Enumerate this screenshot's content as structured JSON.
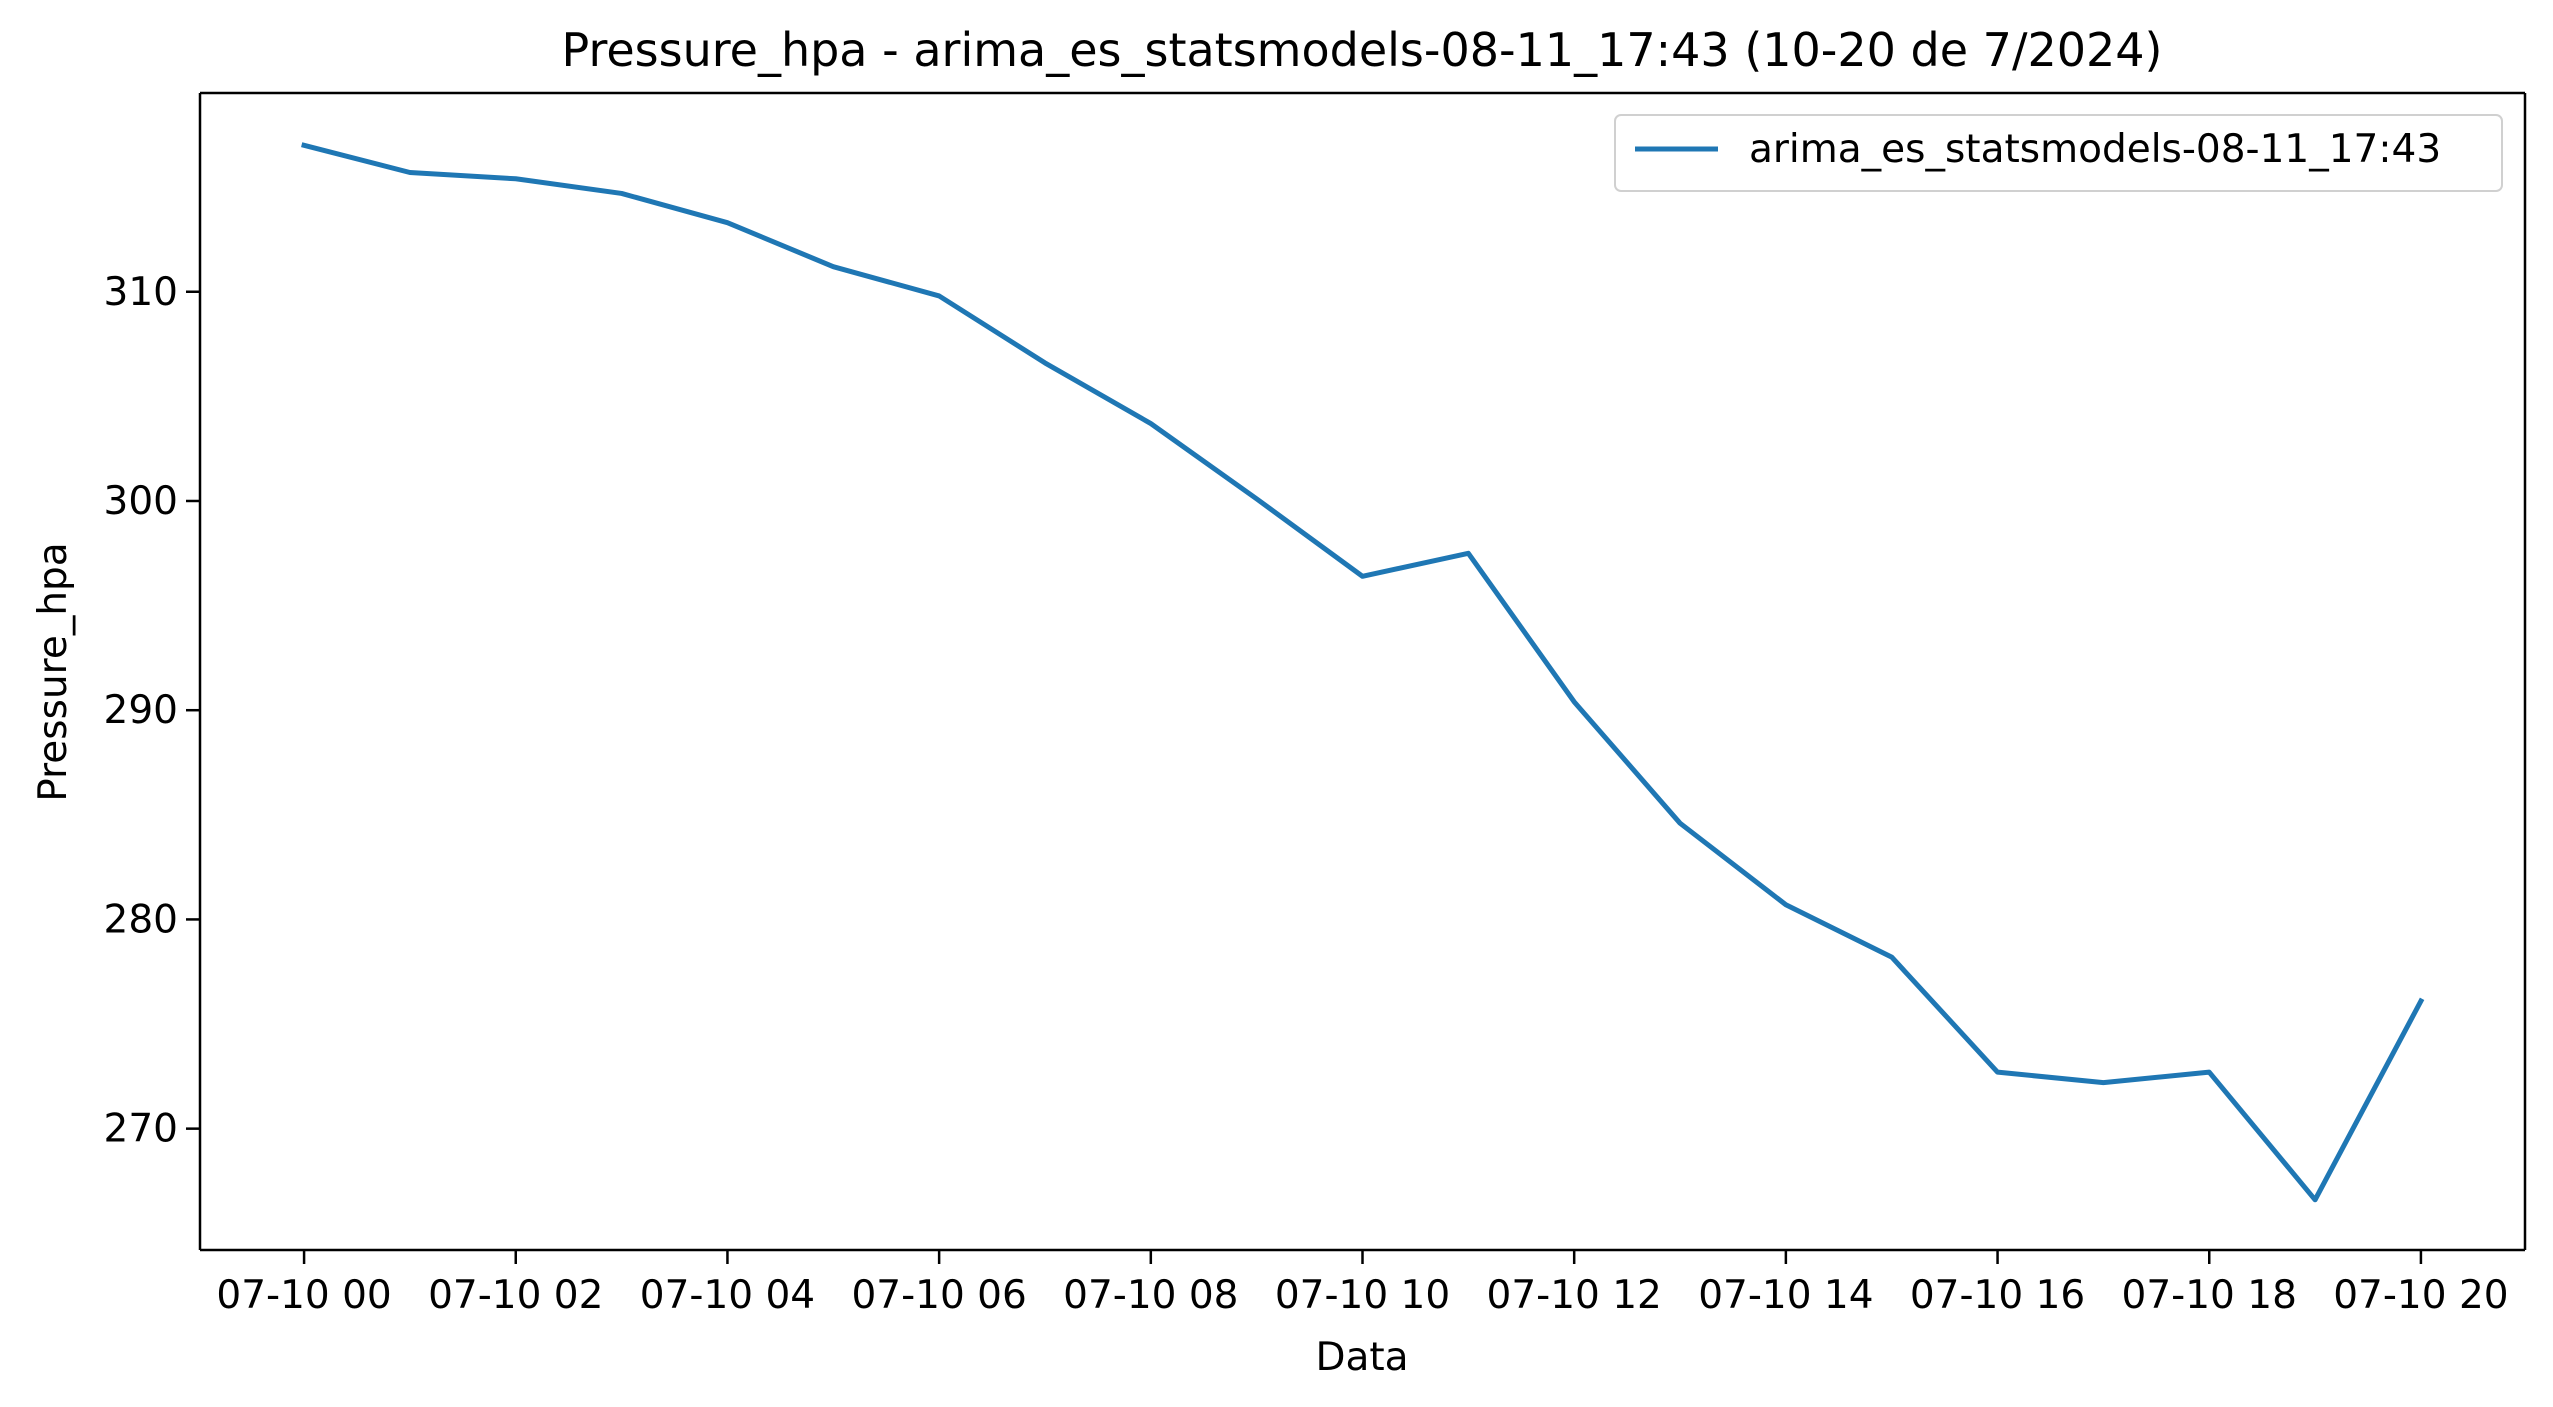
{
  "chart_data": {
    "type": "line",
    "title": "Pressure_hpa - arima_es_statsmodels-08-11_17:43 (10-20 de 7/2024)",
    "xlabel": "Data",
    "ylabel": "Pressure_hpa",
    "x": [
      "07-10 00",
      "07-10 01",
      "07-10 02",
      "07-10 03",
      "07-10 04",
      "07-10 05",
      "07-10 06",
      "07-10 07",
      "07-10 08",
      "07-10 09",
      "07-10 10",
      "07-10 11",
      "07-10 12",
      "07-10 13",
      "07-10 14",
      "07-10 15",
      "07-10 16",
      "07-10 17",
      "07-10 18",
      "07-10 19",
      "07-10 20"
    ],
    "xlim": [
      "07-09 23:01",
      "07-10 20:59"
    ],
    "x_ticks": [
      "07-10 00",
      "07-10 02",
      "07-10 04",
      "07-10 06",
      "07-10 08",
      "07-10 10",
      "07-10 12",
      "07-10 14",
      "07-10 16",
      "07-10 18",
      "07-10 20"
    ],
    "ylim": [
      264.2,
      319.5
    ],
    "y_ticks": [
      270,
      280,
      290,
      300,
      310
    ],
    "series": [
      {
        "name": "arima_es_statsmodels-08-11_17:43",
        "color": "#1f77b4",
        "values": [
          317.0,
          315.7,
          315.4,
          314.7,
          313.3,
          311.2,
          309.8,
          306.6,
          303.7,
          300.1,
          296.4,
          297.5,
          290.4,
          284.6,
          280.7,
          278.2,
          272.7,
          272.2,
          272.7,
          266.6,
          276.1
        ]
      }
    ],
    "grid": false,
    "legend_position": "top-right"
  }
}
